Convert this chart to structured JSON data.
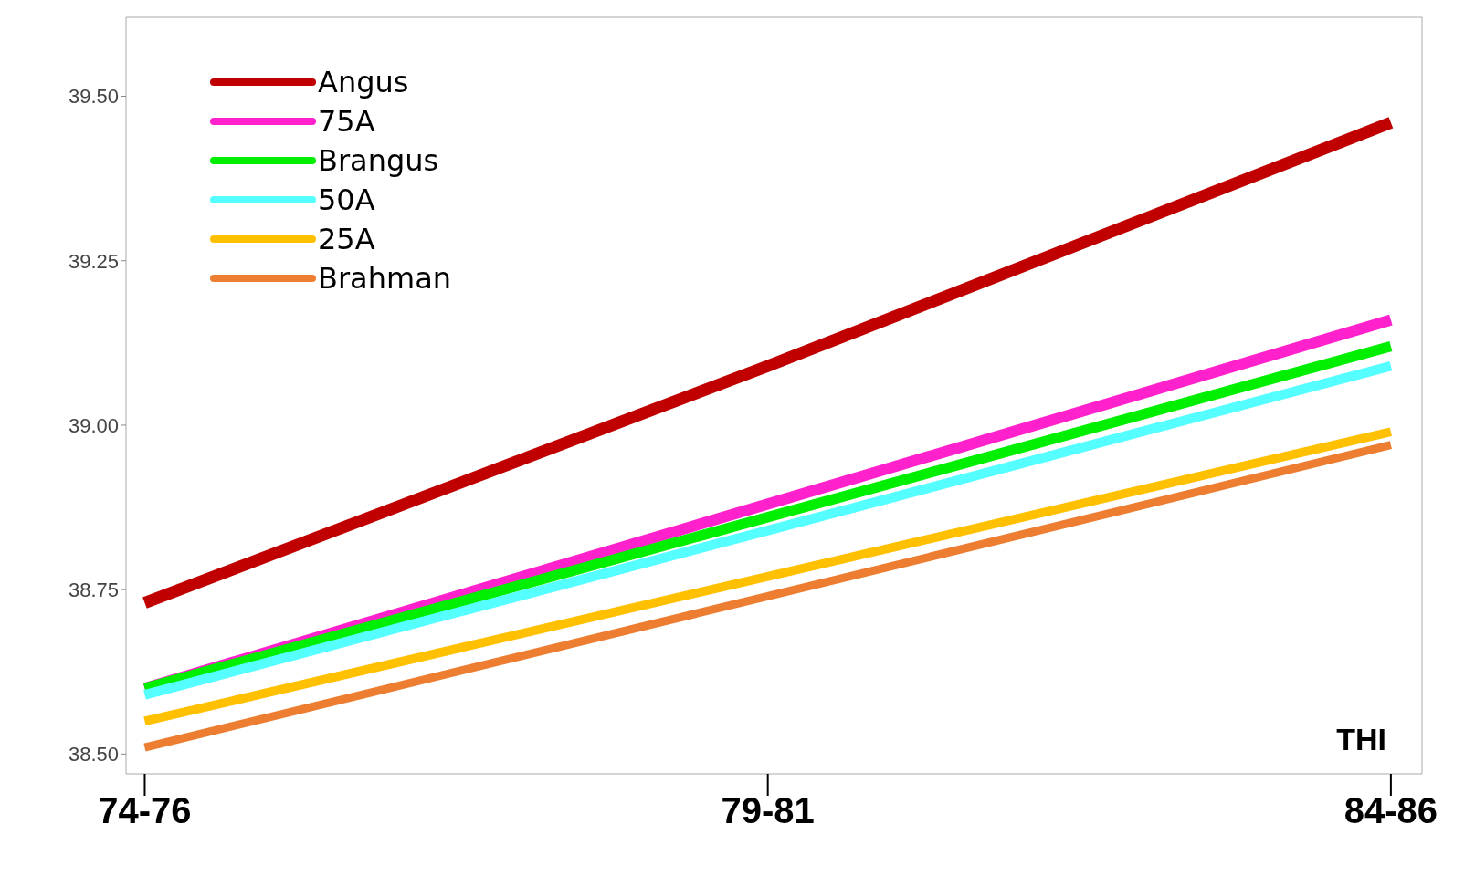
{
  "chart_data": {
    "type": "line",
    "xlabel": "THI",
    "categories": [
      "74-76",
      "79-81",
      "84-86"
    ],
    "series": [
      {
        "name": "Angus",
        "color": "#c00000",
        "values": [
          38.73,
          39.09,
          39.46
        ]
      },
      {
        "name": "75A",
        "color": "#ff22cc",
        "values": [
          38.6,
          38.88,
          39.16
        ]
      },
      {
        "name": "Brangus",
        "color": "#00ee00",
        "values": [
          38.6,
          38.86,
          39.12
        ]
      },
      {
        "name": "50A",
        "color": "#55ffff",
        "values": [
          38.59,
          38.84,
          39.09
        ]
      },
      {
        "name": "25A",
        "color": "#ffc000",
        "values": [
          38.55,
          38.77,
          38.99
        ]
      },
      {
        "name": "Brahman",
        "color": "#ed7d31",
        "values": [
          38.51,
          38.74,
          38.97
        ]
      }
    ],
    "ylim": [
      38.47,
      39.62
    ],
    "yticks": [
      {
        "value": 38.5,
        "label": "38.50"
      },
      {
        "value": 38.75,
        "label": "38.75"
      },
      {
        "value": 39,
        "label": "39.00"
      },
      {
        "value": 39.25,
        "label": "39.25"
      },
      {
        "value": 39.5,
        "label": "39.50"
      }
    ],
    "grid": false,
    "legend": "top left",
    "marker": "none",
    "line_style": "solid"
  }
}
